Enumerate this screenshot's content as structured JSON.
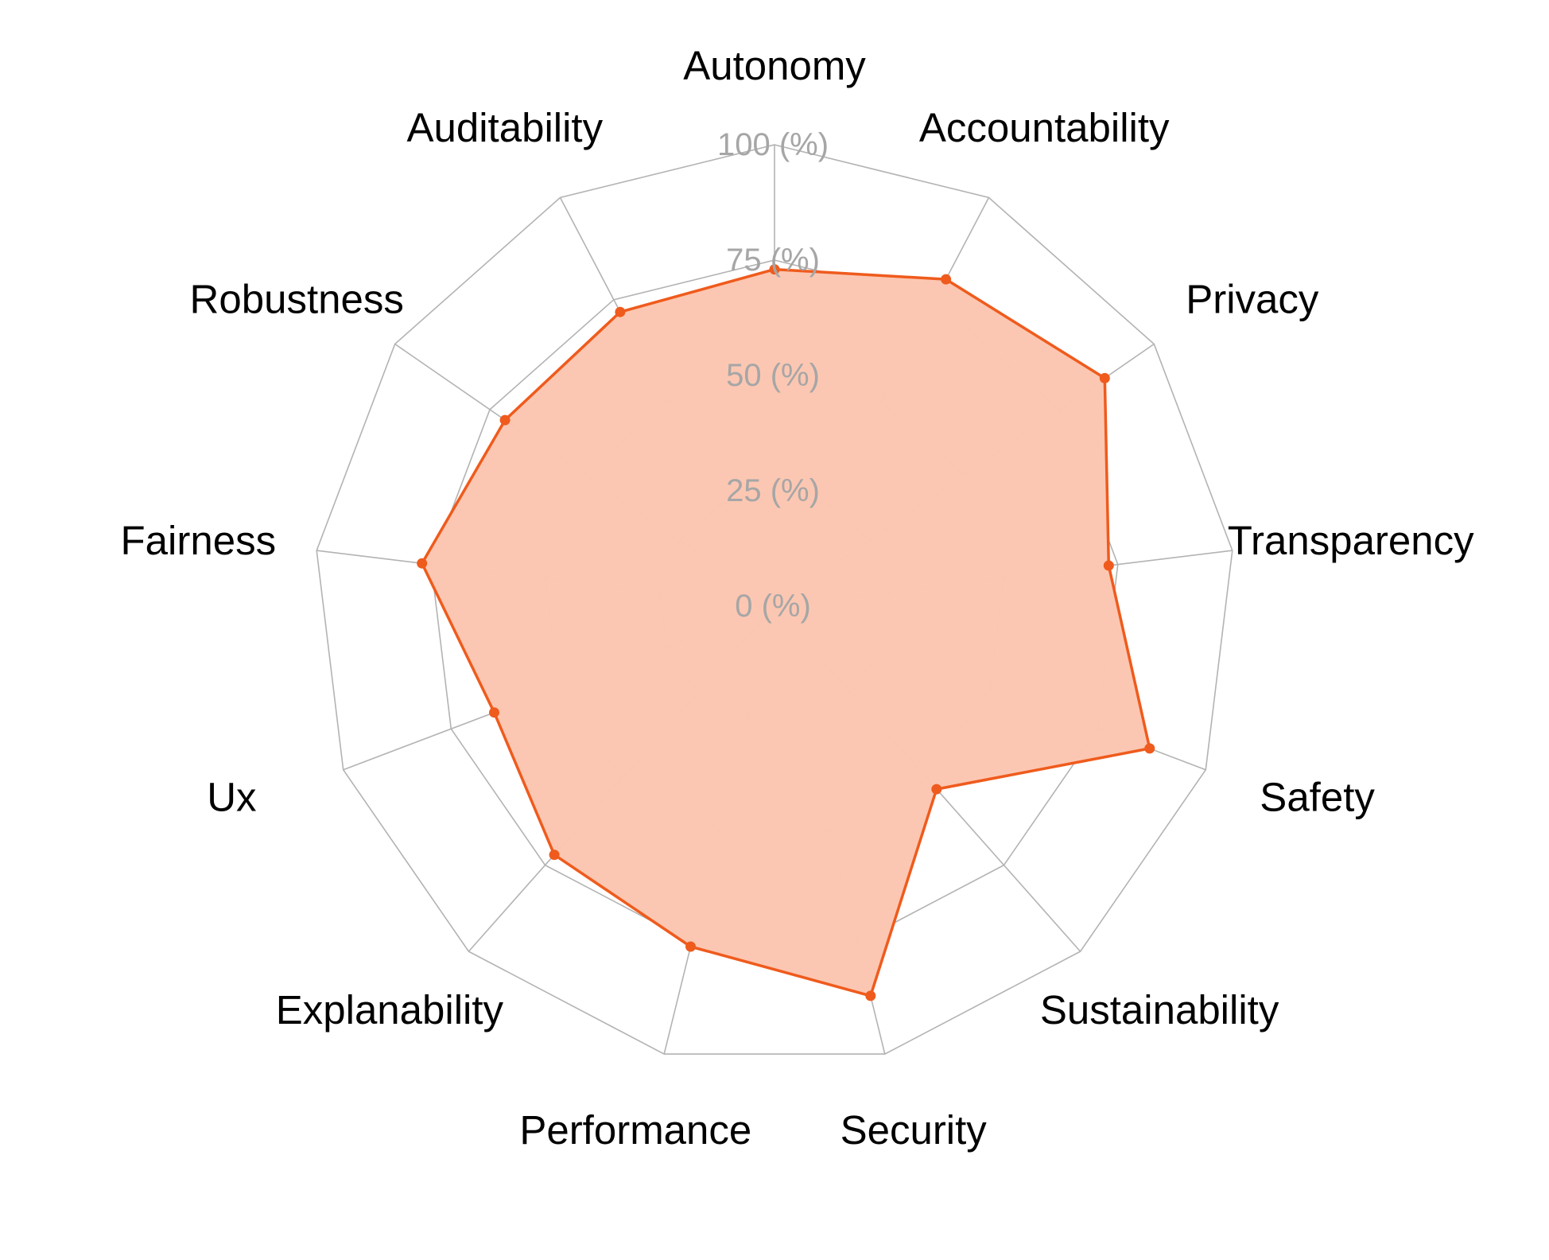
{
  "colors": {
    "series_line": "#ef5b1d",
    "series_fill": "#fcc6b0",
    "grid": "#b3b3b3",
    "tick_text": "#a6a6a6",
    "label_text": "#000000"
  },
  "chart_data": {
    "type": "radar",
    "title": "",
    "categories": [
      "Autonomy",
      "Accountability",
      "Privacy",
      "Transparency",
      "Safety",
      "Sustainability",
      "Security",
      "Performance",
      "Explanability",
      "Ux",
      "Fairness",
      "Robustness",
      "Auditability"
    ],
    "series": [
      {
        "values": [
          73,
          80,
          87,
          73,
          87,
          53,
          87,
          76,
          72,
          65,
          77,
          71,
          72
        ]
      }
    ],
    "radial_ticks": [
      "0 (%)",
      "25 (%)",
      "50 (%)",
      "75 (%)",
      "100 (%)"
    ],
    "radial_tick_values": [
      0,
      25,
      50,
      75,
      100
    ],
    "rlim": [
      0,
      100
    ],
    "grid": true,
    "legend": "none"
  }
}
